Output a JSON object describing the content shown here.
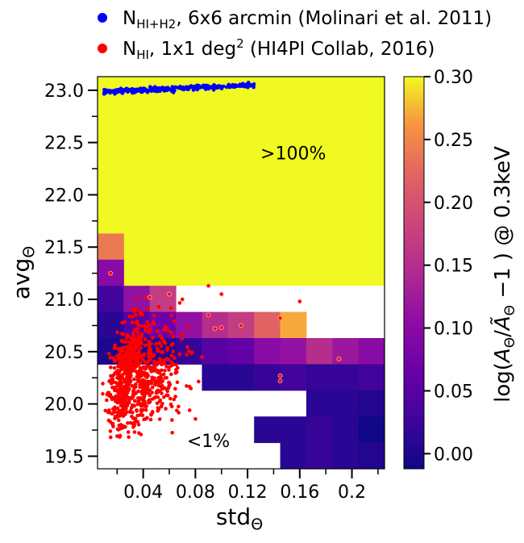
{
  "chart_data": {
    "type": "heatmap",
    "title": "",
    "xlabel_main": "std",
    "xlabel_sub": "Θ",
    "ylabel_main": "avg",
    "ylabel_sub": "Θ",
    "xlim": [
      0.005,
      0.225
    ],
    "ylim": [
      19.38,
      23.13
    ],
    "xticks": [
      {
        "v": 0.04,
        "label": "0.04"
      },
      {
        "v": 0.08,
        "label": "0.08"
      },
      {
        "v": 0.12,
        "label": "0.12"
      },
      {
        "v": 0.16,
        "label": "0.16"
      },
      {
        "v": 0.2,
        "label": "0.2"
      }
    ],
    "xminor": [
      0.02,
      0.06,
      0.1,
      0.14,
      0.18,
      0.22
    ],
    "yticks": [
      {
        "v": 19.5,
        "label": "19.5"
      },
      {
        "v": 20.0,
        "label": "20.0"
      },
      {
        "v": 20.5,
        "label": "20.5"
      },
      {
        "v": 21.0,
        "label": "21.0"
      },
      {
        "v": 21.5,
        "label": "21.5"
      },
      {
        "v": 22.0,
        "label": "22.0"
      },
      {
        "v": 22.5,
        "label": "22.5"
      },
      {
        "v": 23.0,
        "label": "23.0"
      }
    ],
    "yminor": [
      19.75,
      20.25,
      20.75,
      21.25,
      21.75,
      22.25,
      22.75
    ],
    "grid": false,
    "cell": {
      "x0": 0.005,
      "dx": 0.02,
      "y0": 19.38,
      "dy": 0.25
    },
    "cells_comment_free": true,
    "cells": [
      {
        "col": 0,
        "row": 8,
        "v": 0.24
      },
      {
        "col": 0,
        "row": 7,
        "v": 0.1
      },
      {
        "col": 0,
        "row": 6,
        "v": 0.03
      },
      {
        "col": 1,
        "row": 6,
        "v": 0.11
      },
      {
        "col": 2,
        "row": 6,
        "v": 0.17
      },
      {
        "col": 0,
        "row": 5,
        "v": 0.01
      },
      {
        "col": 1,
        "row": 5,
        "v": 0.05
      },
      {
        "col": 2,
        "row": 5,
        "v": 0.07
      },
      {
        "col": 3,
        "row": 5,
        "v": 0.11
      },
      {
        "col": 4,
        "row": 5,
        "v": 0.15
      },
      {
        "col": 5,
        "row": 5,
        "v": 0.17
      },
      {
        "col": 6,
        "row": 5,
        "v": 0.22
      },
      {
        "col": 7,
        "row": 5,
        "v": 0.27
      },
      {
        "col": 0,
        "row": 4,
        "v": 0.0
      },
      {
        "col": 1,
        "row": 4,
        "v": 0.0
      },
      {
        "col": 2,
        "row": 4,
        "v": 0.01
      },
      {
        "col": 3,
        "row": 4,
        "v": 0.02
      },
      {
        "col": 4,
        "row": 4,
        "v": 0.05
      },
      {
        "col": 5,
        "row": 4,
        "v": 0.06
      },
      {
        "col": 6,
        "row": 4,
        "v": 0.1
      },
      {
        "col": 7,
        "row": 4,
        "v": 0.11
      },
      {
        "col": 8,
        "row": 4,
        "v": 0.15
      },
      {
        "col": 9,
        "row": 4,
        "v": 0.12
      },
      {
        "col": 10,
        "row": 4,
        "v": 0.1
      },
      {
        "col": 4,
        "row": 3,
        "v": 0.01
      },
      {
        "col": 5,
        "row": 3,
        "v": 0.01
      },
      {
        "col": 6,
        "row": 3,
        "v": 0.02
      },
      {
        "col": 7,
        "row": 3,
        "v": 0.03
      },
      {
        "col": 8,
        "row": 3,
        "v": 0.02
      },
      {
        "col": 9,
        "row": 3,
        "v": 0.02
      },
      {
        "col": 10,
        "row": 3,
        "v": 0.03
      },
      {
        "col": 8,
        "row": 2,
        "v": 0.01
      },
      {
        "col": 9,
        "row": 2,
        "v": 0.01
      },
      {
        "col": 10,
        "row": 2,
        "v": 0.005
      },
      {
        "col": 6,
        "row": 1,
        "v": 0.01
      },
      {
        "col": 7,
        "row": 1,
        "v": 0.01
      },
      {
        "col": 8,
        "row": 1,
        "v": 0.02
      },
      {
        "col": 9,
        "row": 1,
        "v": 0.01
      },
      {
        "col": 10,
        "row": 1,
        "v": -0.01
      },
      {
        "col": 7,
        "row": 0,
        "v": 0.01
      },
      {
        "col": 8,
        "row": 0,
        "v": 0.02
      },
      {
        "col": 9,
        "row": 0,
        "v": 0.01
      },
      {
        "col": 10,
        "row": 0,
        "v": 0.005
      },
      {
        "col": 7,
        "row": -1,
        "v": 0.01
      },
      {
        "col": 9,
        "row": -1,
        "v": 0.01
      },
      {
        "col": 10,
        "row": -1,
        "v": 0.01
      }
    ],
    "saturated_region": {
      "y_from": 21.13,
      "x_from": 0.005,
      "v": 0.3
    },
    "annotations": [
      {
        "text": ">100%",
        "x": 0.155,
        "y": 22.4
      },
      {
        "text": "<1%",
        "x": 0.09,
        "y": 19.65
      }
    ],
    "colorbar": {
      "label": "log(A_Θ/Ã_Θ − 1) @ 0.3keV",
      "label_parts": {
        "lead": "log(",
        "a": "A",
        "sub1": "Θ",
        "slash": "/",
        "at": "Ã",
        "sub2": "Θ",
        "tail": " −1 ) @ 0.3keV"
      },
      "vmin": -0.012,
      "vmax": 0.3,
      "colormap": "plasma",
      "ticks": [
        {
          "v": 0.0,
          "label": "0.00"
        },
        {
          "v": 0.05,
          "label": "0.05"
        },
        {
          "v": 0.1,
          "label": "0.10"
        },
        {
          "v": 0.15,
          "label": "0.15"
        },
        {
          "v": 0.2,
          "label": "0.20"
        },
        {
          "v": 0.25,
          "label": "0.25"
        },
        {
          "v": 0.3,
          "label": "0.30"
        }
      ]
    },
    "series": [
      {
        "name": "N_HI+H2, 6x6 arcmin (Molinari et al. 2011)",
        "color": "#0000ff",
        "x_range": [
          0.01,
          0.125
        ],
        "y_range": [
          22.97,
          23.06
        ],
        "trend": "y rises from ~22.98 to ~23.05 as x increases"
      },
      {
        "name": "N_HI, 1x1 deg2 (HI4PI Collab, 2016)",
        "color": "#ff0000",
        "x_range": [
          0.01,
          0.21
        ],
        "y_range": [
          19.65,
          21.25
        ],
        "core_center": [
          0.03,
          20.25
        ],
        "outliers": [
          [
            0.015,
            21.25
          ],
          [
            0.09,
            21.13
          ],
          [
            0.1,
            21.05
          ],
          [
            0.07,
            21.0
          ],
          [
            0.045,
            21.02
          ],
          [
            0.09,
            20.85
          ],
          [
            0.095,
            20.72
          ],
          [
            0.1,
            20.73
          ],
          [
            0.115,
            20.75
          ],
          [
            0.145,
            20.82
          ],
          [
            0.16,
            20.98
          ],
          [
            0.145,
            20.27
          ],
          [
            0.145,
            20.22
          ],
          [
            0.19,
            20.43
          ],
          [
            0.06,
            21.05
          ]
        ]
      }
    ],
    "legend": {
      "placement": "top",
      "entries": [
        {
          "text_main": "N",
          "text_sub": "HI+H2",
          "text_rest": ", 6x6 arcmin (Molinari et al. 2011)",
          "color": "#0000ff"
        },
        {
          "text_main": "N",
          "text_sub": "HI",
          "text_mid": ", 1x1 deg",
          "text_sup": "2",
          "text_rest": " (HI4PI Collab, 2016)",
          "color": "#ff0000"
        }
      ]
    }
  }
}
